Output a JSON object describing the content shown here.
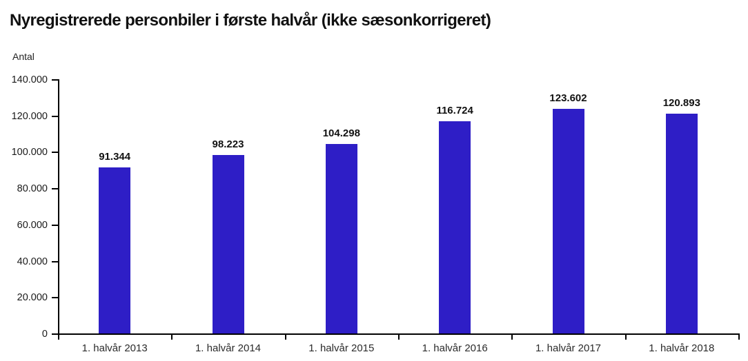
{
  "header": {
    "title": "Nyregistrerede personbiler i første halvår (ikke sæsonkorrigeret)"
  },
  "chart_data": {
    "type": "bar",
    "title": "Nyregistrerede personbiler i første halvår (ikke sæsonkorrigeret)",
    "ylabel": "Antal",
    "xlabel": "",
    "categories": [
      "1. halvår 2013",
      "1. halvår 2014",
      "1. halvår 2015",
      "1. halvår 2016",
      "1. halvår 2017",
      "1. halvår 2018"
    ],
    "values": [
      91344,
      98223,
      104298,
      116724,
      123602,
      120893
    ],
    "value_labels": [
      "91.344",
      "98.223",
      "104.298",
      "116.724",
      "123.602",
      "120.893"
    ],
    "ylim": [
      0,
      140000
    ],
    "ytick_step": 20000,
    "ytick_labels": [
      "0",
      "20.000",
      "40.000",
      "60.000",
      "80.000",
      "100.000",
      "120.000",
      "140.000"
    ],
    "grid": false,
    "legend": "none",
    "bar_color": "#2e1ec6",
    "axis_color": "#000000"
  }
}
